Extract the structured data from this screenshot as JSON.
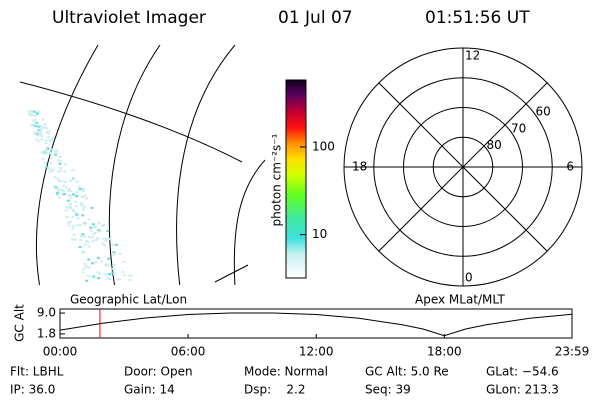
{
  "header": {
    "title": "Ultraviolet Imager",
    "date": "01 Jul 07",
    "time": "01:51:56 UT"
  },
  "colorbar": {
    "label": "photon cm⁻²s⁻¹",
    "log": true,
    "range": [
      3.2,
      580
    ],
    "ticks": [
      100,
      10
    ]
  },
  "polar": {
    "lat_range": [
      50,
      90
    ],
    "lat_ticks": [
      60,
      70,
      80
    ],
    "mlt_ticks": [
      12,
      18,
      6,
      0
    ]
  },
  "time_plot": {
    "ylabel": "GC Alt",
    "left_label": "Geographic Lat/Lon",
    "right_label": "Apex MLat/MLT",
    "ylim": [
      0.4,
      10.4
    ],
    "yticks": [
      {
        "value": 9.0,
        "label": "9.0"
      },
      {
        "value": 1.8,
        "label": "1.8"
      }
    ],
    "xlim": [
      0,
      23.98
    ],
    "xticks": [
      {
        "value": 0,
        "label": "00:00"
      },
      {
        "value": 6,
        "label": "06:00"
      },
      {
        "value": 12,
        "label": "12:00"
      },
      {
        "value": 18,
        "label": "18:00"
      },
      {
        "value": 23.98,
        "label": "23:59"
      }
    ],
    "x": [
      0,
      2,
      4,
      6,
      8,
      10,
      12,
      14,
      16,
      17,
      18,
      19,
      20,
      22,
      23.98
    ],
    "values": [
      3.1,
      5.5,
      7.3,
      8.5,
      9.0,
      9.0,
      8.5,
      7.2,
      5.0,
      3.5,
      1.2,
      3.5,
      5.0,
      7.2,
      8.6
    ],
    "marker": 1.87,
    "marker_color": "#ff0000"
  },
  "status": [
    [
      "Flt: LBHL",
      "Door: Open",
      "Mode: Normal",
      "GC Alt: 5.0 Re",
      "GLat: −54.6"
    ],
    [
      "IP: 36.0",
      "Gain: 14",
      "Dsp:    2.2",
      "Seq: 39",
      "GLon: 213.3"
    ]
  ]
}
